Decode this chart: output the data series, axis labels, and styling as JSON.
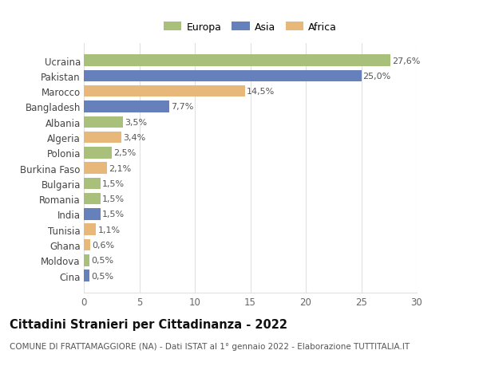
{
  "categories": [
    "Cina",
    "Moldova",
    "Ghana",
    "Tunisia",
    "India",
    "Romania",
    "Bulgaria",
    "Burkina Faso",
    "Polonia",
    "Algeria",
    "Albania",
    "Bangladesh",
    "Marocco",
    "Pakistan",
    "Ucraina"
  ],
  "values": [
    0.5,
    0.5,
    0.6,
    1.1,
    1.5,
    1.5,
    1.5,
    2.1,
    2.5,
    3.4,
    3.5,
    7.7,
    14.5,
    25.0,
    27.6
  ],
  "labels": [
    "0,5%",
    "0,5%",
    "0,6%",
    "1,1%",
    "1,5%",
    "1,5%",
    "1,5%",
    "2,1%",
    "2,5%",
    "3,4%",
    "3,5%",
    "7,7%",
    "14,5%",
    "25,0%",
    "27,6%"
  ],
  "continents": [
    "Asia",
    "Europa",
    "Africa",
    "Africa",
    "Asia",
    "Europa",
    "Europa",
    "Africa",
    "Europa",
    "Africa",
    "Europa",
    "Asia",
    "Africa",
    "Asia",
    "Europa"
  ],
  "color_map": {
    "Europa": "#a8c07a",
    "Asia": "#6680bb",
    "Africa": "#e8b87a"
  },
  "legend_items": [
    "Europa",
    "Asia",
    "Africa"
  ],
  "legend_colors": [
    "#a8c07a",
    "#6680bb",
    "#e8b87a"
  ],
  "title": "Cittadini Stranieri per Cittadinanza - 2022",
  "subtitle": "COMUNE DI FRATTAMAGGIORE (NA) - Dati ISTAT al 1° gennaio 2022 - Elaborazione TUTTITALIA.IT",
  "xlim": [
    0,
    30
  ],
  "xticks": [
    0,
    5,
    10,
    15,
    20,
    25,
    30
  ],
  "background_color": "#ffffff",
  "grid_color": "#e0e0e0",
  "bar_height": 0.75,
  "title_fontsize": 10.5,
  "subtitle_fontsize": 7.5,
  "tick_fontsize": 8.5,
  "label_fontsize": 8.0,
  "legend_fontsize": 9.0
}
